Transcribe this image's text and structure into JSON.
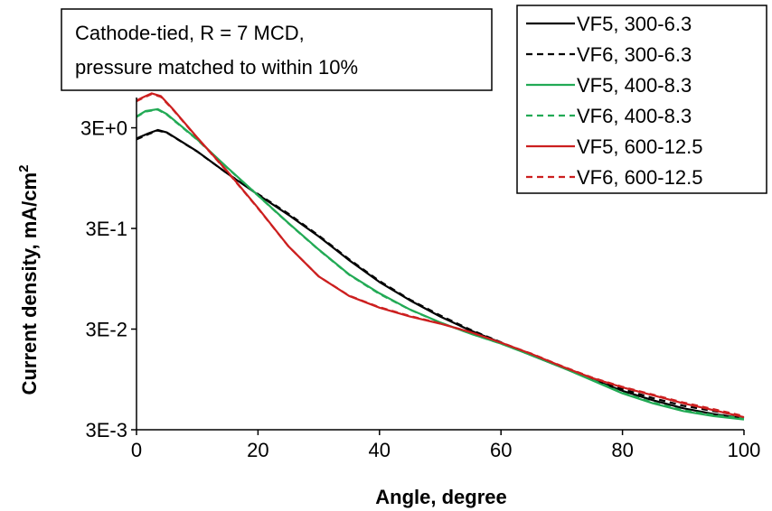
{
  "chart_data": {
    "type": "line",
    "xlabel": "Angle, degree",
    "ylabel": "Current density, mA/cm",
    "ylabel_sup": "2",
    "annotation": [
      "Cathode-tied, R = 7 MCD,",
      "pressure matched to within 10%"
    ],
    "xlim": [
      0,
      100
    ],
    "ylim": [
      0.003,
      6
    ],
    "yscale": "log",
    "x_ticks": [
      0,
      20,
      40,
      60,
      80,
      100
    ],
    "x_tick_labels": [
      "0",
      "20",
      "40",
      "60",
      "80",
      "100"
    ],
    "y_ticks": [
      0.003,
      0.03,
      0.3,
      3
    ],
    "y_tick_labels": [
      "3E-3",
      "3E-2",
      "3E-1",
      "3E+0"
    ],
    "legend_position": "top-right",
    "series": [
      {
        "name": "VF5, 300-6.3",
        "color": "#000000",
        "dash": "solid",
        "x": [
          0,
          2,
          3.5,
          5,
          10,
          15,
          20,
          25,
          30,
          35,
          40,
          45,
          50,
          55,
          60,
          65,
          70,
          75,
          80,
          85,
          90,
          95,
          100
        ],
        "y": [
          2.35,
          2.65,
          2.85,
          2.7,
          1.75,
          1.05,
          0.65,
          0.41,
          0.25,
          0.145,
          0.088,
          0.058,
          0.04,
          0.029,
          0.022,
          0.0165,
          0.0125,
          0.0095,
          0.0073,
          0.0059,
          0.0049,
          0.0043,
          0.0039
        ]
      },
      {
        "name": "VF6, 300-6.3",
        "color": "#000000",
        "dash": "dashed",
        "x": [
          0,
          2,
          3.5,
          5,
          10,
          15,
          20,
          25,
          30,
          35,
          40,
          45,
          50,
          55,
          60,
          65,
          70,
          75,
          80,
          85,
          90,
          95,
          100
        ],
        "y": [
          2.3,
          2.6,
          2.82,
          2.68,
          1.74,
          1.05,
          0.66,
          0.42,
          0.255,
          0.148,
          0.09,
          0.059,
          0.041,
          0.0295,
          0.0222,
          0.0167,
          0.0126,
          0.0097,
          0.0076,
          0.0062,
          0.0052,
          0.0046,
          0.0041
        ]
      },
      {
        "name": "VF5, 400-8.3",
        "color": "#22aa55",
        "dash": "solid",
        "x": [
          0,
          1.5,
          3.5,
          5,
          10,
          15,
          20,
          25,
          30,
          35,
          40,
          45,
          50,
          55,
          60,
          65,
          70,
          75,
          80,
          85,
          90,
          95,
          100
        ],
        "y": [
          3.9,
          4.4,
          4.6,
          4.1,
          2.3,
          1.2,
          0.64,
          0.34,
          0.185,
          0.105,
          0.068,
          0.047,
          0.035,
          0.027,
          0.0215,
          0.0165,
          0.0125,
          0.0093,
          0.0069,
          0.0055,
          0.0046,
          0.0041,
          0.0038
        ]
      },
      {
        "name": "VF6, 400-8.3",
        "color": "#22aa55",
        "dash": "dashed",
        "x": [
          0,
          1.5,
          3.5,
          5,
          10,
          15,
          20,
          25,
          30,
          35,
          40,
          45,
          50,
          55,
          60,
          65,
          70,
          75,
          80,
          85,
          90,
          95,
          100
        ],
        "y": [
          3.85,
          4.35,
          4.55,
          4.05,
          2.28,
          1.19,
          0.635,
          0.338,
          0.184,
          0.104,
          0.067,
          0.0468,
          0.0348,
          0.027,
          0.0215,
          0.0166,
          0.0126,
          0.0094,
          0.007,
          0.0056,
          0.0047,
          0.0042,
          0.0039
        ]
      },
      {
        "name": "VF5, 600-12.5",
        "color": "#cc1f1f",
        "dash": "solid",
        "x": [
          0,
          1,
          2.5,
          4,
          6,
          10,
          15,
          20,
          25,
          30,
          35,
          40,
          45,
          50,
          55,
          60,
          65,
          70,
          75,
          80,
          85,
          90,
          95,
          100
        ],
        "y": [
          5.6,
          6.0,
          6.6,
          6.2,
          4.6,
          2.4,
          1.1,
          0.48,
          0.2,
          0.1,
          0.064,
          0.049,
          0.04,
          0.034,
          0.028,
          0.022,
          0.017,
          0.0128,
          0.0098,
          0.0079,
          0.0066,
          0.0055,
          0.0047,
          0.004
        ]
      },
      {
        "name": "VF6, 600-12.5",
        "color": "#cc1f1f",
        "dash": "dashed",
        "x": [
          0,
          1,
          2.5,
          4,
          6,
          10,
          15,
          20,
          25,
          30,
          35,
          40,
          45,
          50,
          55,
          60,
          65,
          70,
          75,
          80,
          85,
          90,
          95,
          100
        ],
        "y": [
          5.5,
          5.9,
          6.5,
          6.1,
          4.55,
          2.38,
          1.09,
          0.475,
          0.2,
          0.1,
          0.0645,
          0.0495,
          0.0405,
          0.0342,
          0.028,
          0.022,
          0.0171,
          0.0129,
          0.0099,
          0.008,
          0.0067,
          0.0056,
          0.0048,
          0.0041
        ]
      }
    ]
  }
}
